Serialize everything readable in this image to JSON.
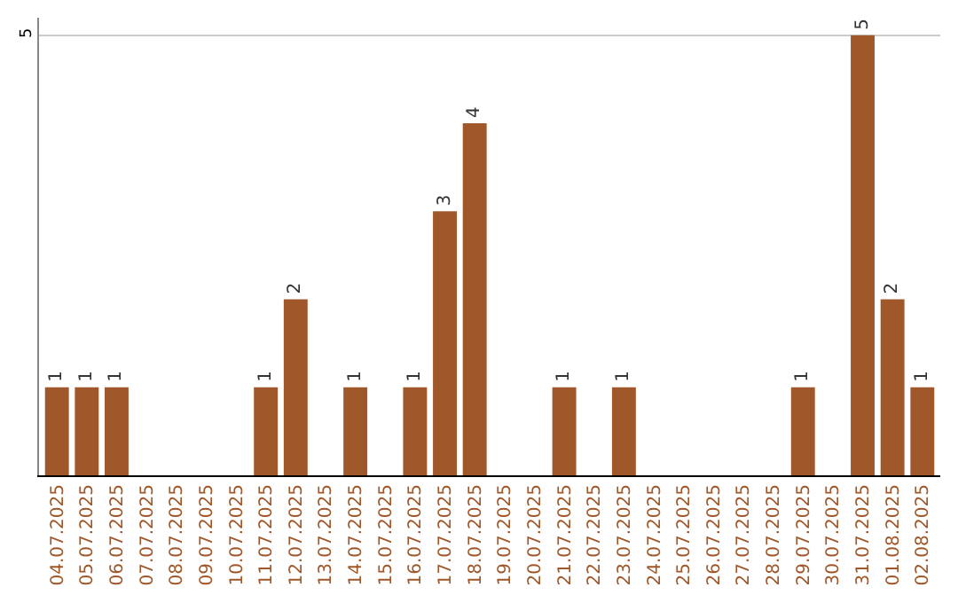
{
  "chart_data": {
    "type": "bar",
    "categories": [
      "04.07.2025",
      "05.07.2025",
      "06.07.2025",
      "07.07.2025",
      "08.07.2025",
      "09.07.2025",
      "10.07.2025",
      "11.07.2025",
      "12.07.2025",
      "13.07.2025",
      "14.07.2025",
      "15.07.2025",
      "16.07.2025",
      "17.07.2025",
      "18.07.2025",
      "19.07.2025",
      "20.07.2025",
      "21.07.2025",
      "22.07.2025",
      "23.07.2025",
      "24.07.2025",
      "25.07.2025",
      "26.07.2025",
      "27.07.2025",
      "28.07.2025",
      "29.07.2025",
      "30.07.2025",
      "31.07.2025",
      "01.08.2025",
      "02.08.2025"
    ],
    "values": [
      1,
      1,
      1,
      0,
      0,
      0,
      0,
      1,
      2,
      0,
      1,
      0,
      1,
      3,
      4,
      0,
      0,
      1,
      0,
      1,
      0,
      0,
      0,
      0,
      0,
      1,
      0,
      5,
      2,
      1
    ],
    "value_labels": [
      "1",
      "1",
      "1",
      null,
      null,
      null,
      null,
      "1",
      "2",
      null,
      "1",
      null,
      "1",
      "3",
      "4",
      null,
      null,
      "1",
      null,
      "1",
      null,
      null,
      null,
      null,
      null,
      "1",
      null,
      "5",
      "2",
      "1"
    ],
    "color": "#a0572a",
    "ylim": [
      0,
      5.2
    ],
    "yticks": [
      5
    ],
    "grid": "y",
    "legend": false
  }
}
